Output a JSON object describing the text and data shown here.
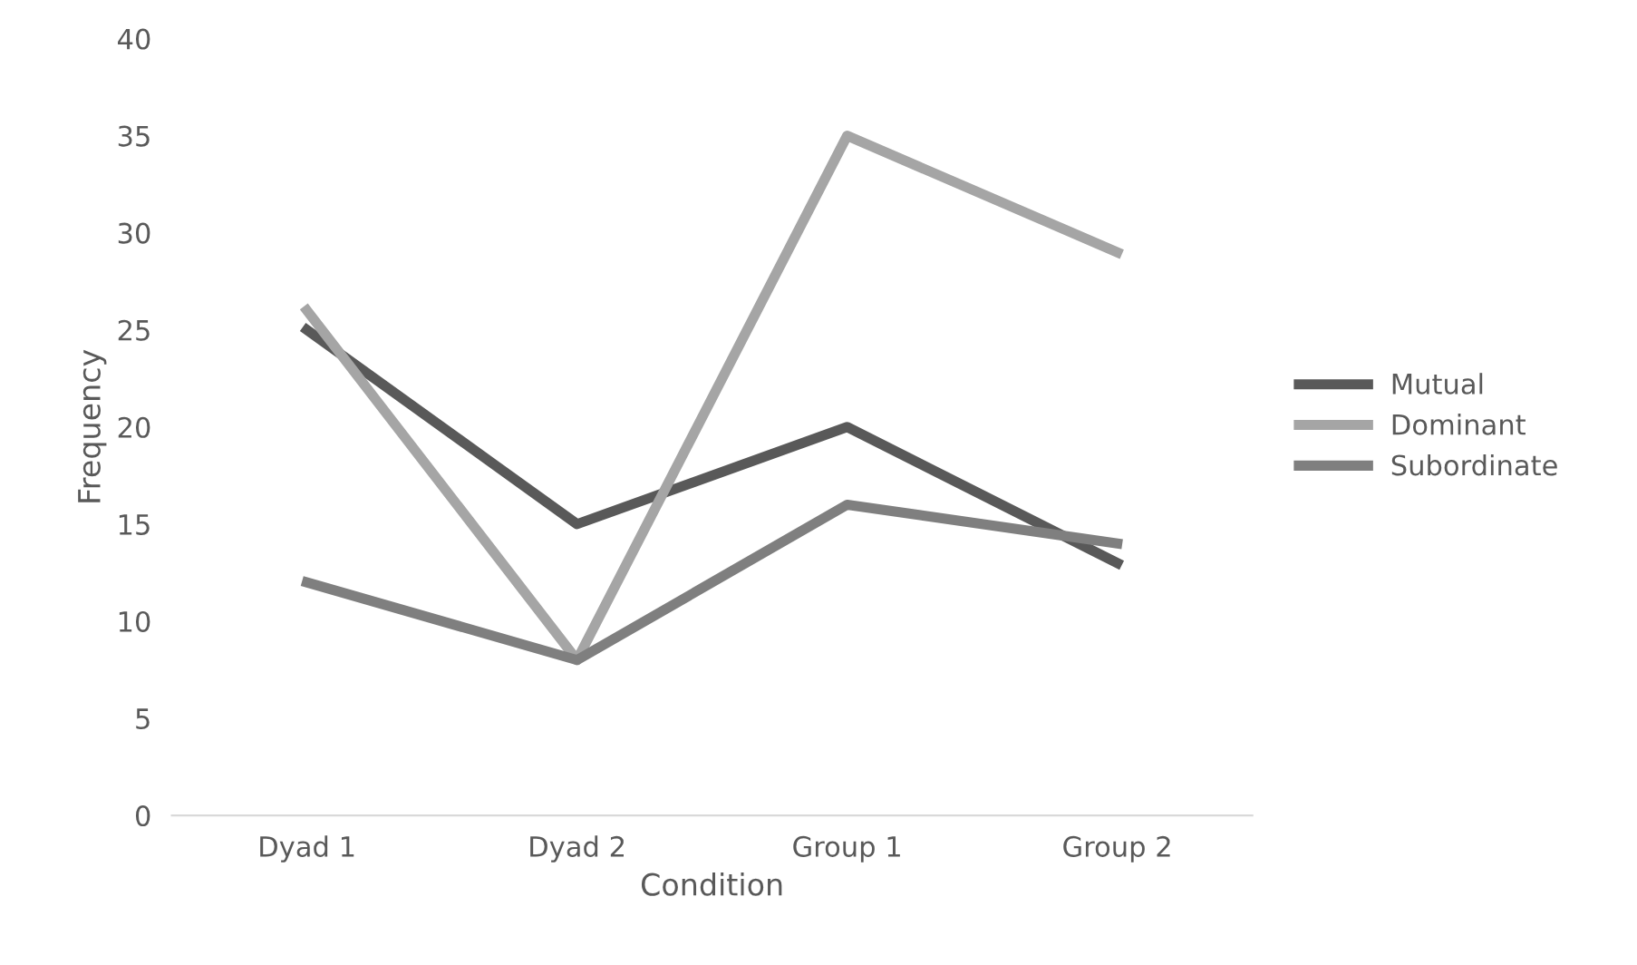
{
  "chart_data": {
    "type": "line",
    "xlabel": "Condition",
    "ylabel": "Frequency",
    "categories": [
      "Dyad 1",
      "Dyad 2",
      "Group 1",
      "Group 2"
    ],
    "series": [
      {
        "name": "Mutual",
        "color": "#595959",
        "values": [
          25,
          15,
          20,
          13
        ]
      },
      {
        "name": "Dominant",
        "color": "#a5a5a5",
        "values": [
          26,
          8,
          35,
          29
        ]
      },
      {
        "name": "Subordinate",
        "color": "#7f7f7f",
        "values": [
          12,
          8,
          16,
          14
        ]
      }
    ],
    "ylim": [
      0,
      40
    ],
    "yticks": [
      0,
      5,
      10,
      15,
      20,
      25,
      30,
      35,
      40
    ],
    "grid": false,
    "legend": "right",
    "marker": "none",
    "line_style": "solid"
  }
}
